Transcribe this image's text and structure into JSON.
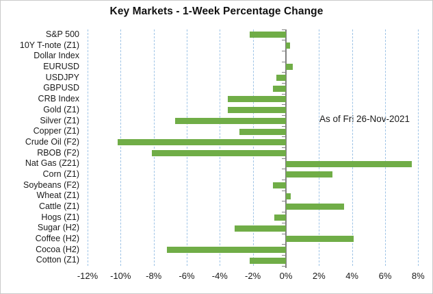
{
  "chart_data": {
    "type": "bar",
    "orientation": "horizontal",
    "title": "Key Markets - 1-Week Percentage Change",
    "annotation": "As of Fri 26-Nov-2021",
    "categories": [
      "S&P 500",
      "10Y T-note (Z1)",
      "Dollar Index",
      "EURUSD",
      "USDJPY",
      "GBPUSD",
      "CRB Index",
      "Gold (Z1)",
      "Silver (Z1)",
      "Copper (Z1)",
      "Crude Oil (F2)",
      "RBOB (F2)",
      "Nat Gas (Z21)",
      "Corn (Z1)",
      "Soybeans (F2)",
      "Wheat (Z1)",
      "Cattle (Z1)",
      "Hogs (Z1)",
      "Sugar (H2)",
      "Coffee (H2)",
      "Cocoa (H2)",
      "Cotton (Z1)"
    ],
    "values": [
      -2.2,
      0.25,
      0.0,
      0.4,
      -0.6,
      -0.8,
      -3.5,
      -3.5,
      -6.7,
      -2.8,
      -10.2,
      -8.1,
      7.6,
      2.8,
      -0.8,
      0.3,
      3.5,
      -0.7,
      -3.1,
      4.1,
      -7.2,
      -2.2
    ],
    "value_unit": "%",
    "xlabel": "",
    "ylabel": "",
    "xlim": [
      -12,
      8
    ],
    "x_tick_step": 2,
    "x_tick_labels": [
      "-12%",
      "-10%",
      "-8%",
      "-6%",
      "-4%",
      "-2%",
      "0%",
      "2%",
      "4%",
      "6%",
      "8%"
    ],
    "grid": "vertical-dashed",
    "legend_position": "none",
    "colors": {
      "bar": "#70ad47",
      "gridline": "#9dc3e6",
      "axis": "#808080",
      "text": "#1a1a1a",
      "background": "#ffffff",
      "border": "#c9c9c9"
    }
  }
}
